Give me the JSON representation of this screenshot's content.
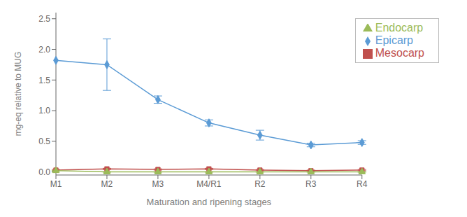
{
  "chart_data": {
    "type": "line",
    "xlabel": "Maturation and ripening stages",
    "ylabel": "mg-eq relative to MUG",
    "categories": [
      "M1",
      "M2",
      "M3",
      "M4/R1",
      "R2",
      "R3",
      "R4"
    ],
    "series": [
      {
        "name": "Epicarp",
        "color": "#5B9BD5",
        "marker": "diamond",
        "values": [
          1.82,
          1.75,
          1.18,
          0.8,
          0.6,
          0.44,
          0.48
        ],
        "errors": [
          0.0,
          0.42,
          0.06,
          0.05,
          0.08,
          0.03,
          0.03
        ]
      },
      {
        "name": "Mesocarp",
        "color": "#C0504D",
        "marker": "square",
        "values": [
          0.03,
          0.05,
          0.04,
          0.05,
          0.03,
          0.02,
          0.03
        ],
        "errors": [
          0.01,
          0.01,
          0.01,
          0.01,
          0.01,
          0.01,
          0.01
        ]
      },
      {
        "name": "Endocarp",
        "color": "#9BBB59",
        "marker": "triangle",
        "values": [
          0.02,
          0.0,
          0.0,
          0.0,
          0.0,
          0.0,
          0.0
        ],
        "errors": [
          0.005,
          0.005,
          0.005,
          0.005,
          0.005,
          0.005,
          0.005
        ]
      }
    ],
    "ylim": [
      -0.05,
      2.6
    ],
    "yticks": [
      {
        "value": 0.0,
        "label": "0.0"
      },
      0.5,
      {
        "value": 1.0,
        "label": "1.0"
      },
      1.5,
      {
        "value": 2.0,
        "label": "2.0"
      },
      2.5
    ],
    "legend": "upper right",
    "grid": false
  }
}
